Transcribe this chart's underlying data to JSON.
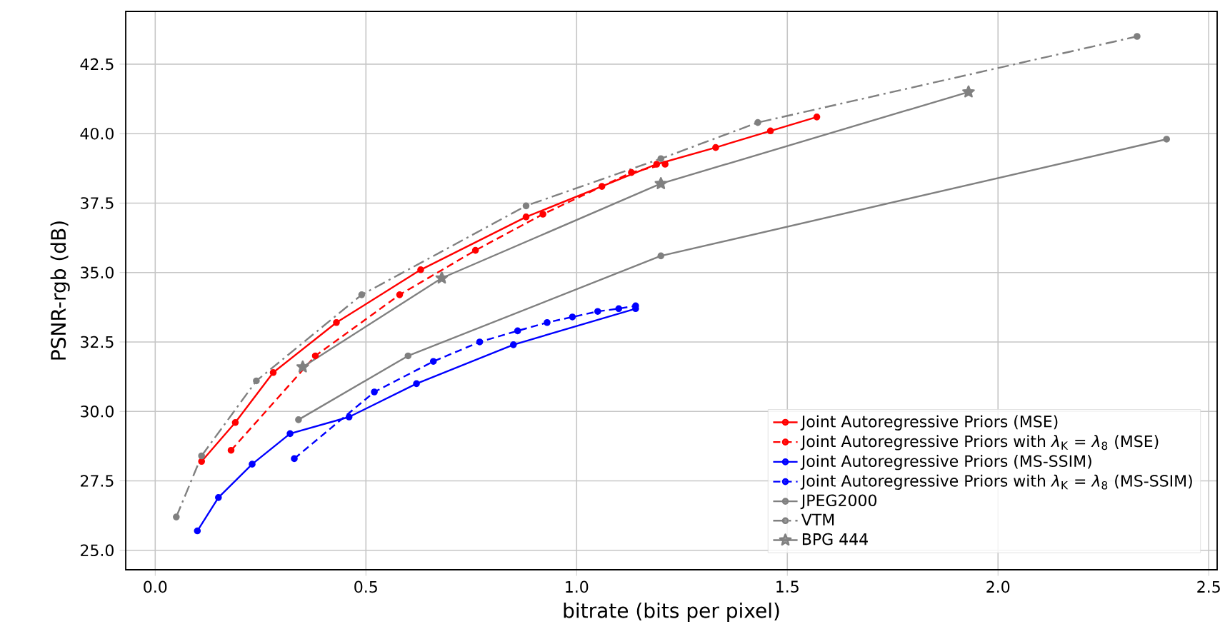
{
  "chart_data": {
    "type": "line",
    "xlabel": "bitrate (bits per pixel)",
    "ylabel": "PSNR-rgb (dB)",
    "xlim": [
      -0.07,
      2.52
    ],
    "ylim": [
      24.3,
      44.4
    ],
    "xticks": [
      {
        "value": 0,
        "label": "0.0"
      },
      0.5,
      {
        "value": 1,
        "label": "1.0"
      },
      1.5,
      {
        "value": 2,
        "label": "2.0"
      },
      2.5
    ],
    "yticks": [
      {
        "value": 25,
        "label": "25.0"
      },
      27.5,
      {
        "value": 30,
        "label": "30.0"
      },
      32.5,
      {
        "value": 35,
        "label": "35.0"
      },
      37.5,
      {
        "value": 40,
        "label": "40.0"
      },
      42.5
    ],
    "grid": true,
    "legend": "bottom right",
    "marker": "circle",
    "line_style": "solid",
    "series": [
      {
        "name": "Joint Autoregressive Priors (MSE)",
        "color": "#ff0000",
        "x": [
          0.11,
          0.19,
          0.28,
          0.43,
          0.63,
          0.88,
          1.19,
          1.33,
          1.46,
          1.57
        ],
        "values": [
          28.2,
          29.6,
          31.4,
          33.2,
          35.1,
          37.0,
          38.9,
          39.5,
          40.1,
          40.6
        ]
      },
      {
        "name": "Joint Autoregressive Priors with *λ*$_{K}$ = *λ*$_{8}$ (MSE)",
        "color": "#ff0000",
        "line_style": "dashed",
        "x": [
          0.18,
          0.38,
          0.58,
          0.76,
          0.92,
          1.06,
          1.13,
          1.21
        ],
        "values": [
          28.6,
          32.0,
          34.2,
          35.8,
          37.1,
          38.1,
          38.6,
          38.9
        ]
      },
      {
        "name": "Joint Autoregressive Priors (MS-SSIM)",
        "color": "#0000ff",
        "x": [
          0.1,
          0.15,
          0.23,
          0.32,
          0.46,
          0.62,
          0.85,
          1.14
        ],
        "values": [
          25.7,
          26.9,
          28.1,
          29.2,
          29.8,
          31.0,
          32.4,
          33.7
        ]
      },
      {
        "name": "Joint Autoregressive Priors with *λ*$_{K}$ = *λ*$_{8}$ (MS-SSIM)",
        "color": "#0000ff",
        "line_style": "dashed",
        "x": [
          0.33,
          0.52,
          0.66,
          0.77,
          0.86,
          0.93,
          0.99,
          1.05,
          1.1,
          1.14
        ],
        "values": [
          28.3,
          30.7,
          31.8,
          32.5,
          32.9,
          33.2,
          33.4,
          33.6,
          33.7,
          33.8
        ]
      },
      {
        "name": "JPEG2000",
        "color": "#808080",
        "x": [
          0.34,
          0.6,
          1.2,
          2.4
        ],
        "values": [
          29.7,
          32.0,
          35.6,
          39.8
        ]
      },
      {
        "name": "VTM",
        "color": "#808080",
        "line_style": "dashdot",
        "x": [
          0.05,
          0.11,
          0.24,
          0.49,
          0.88,
          1.2,
          1.43,
          2.33
        ],
        "values": [
          26.2,
          28.4,
          31.1,
          34.2,
          37.4,
          39.1,
          40.4,
          43.5
        ]
      },
      {
        "name": "BPG 444",
        "color": "#808080",
        "marker": "star",
        "x": [
          0.35,
          0.68,
          1.2,
          1.93
        ],
        "values": [
          31.6,
          34.8,
          38.2,
          41.5
        ]
      }
    ]
  }
}
